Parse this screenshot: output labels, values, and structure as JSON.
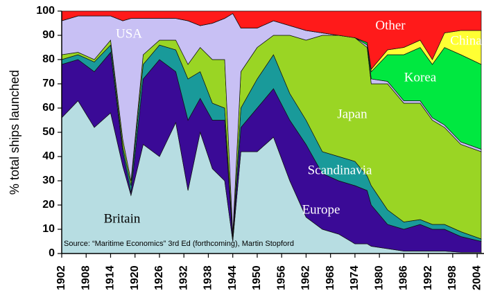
{
  "chart_data": {
    "type": "area",
    "stacked": true,
    "y_label": "% total ships launched",
    "annotation": "Source: “Maritime Economics” 3rd Ed (forthcoming), Martin Stopford",
    "x": [
      1902,
      1906,
      1910,
      1914,
      1917,
      1919,
      1922,
      1926,
      1930,
      1933,
      1936,
      1939,
      1942,
      1944,
      1946,
      1950,
      1954,
      1958,
      1962,
      1966,
      1970,
      1974,
      1977,
      1978,
      1982,
      1986,
      1990,
      1993,
      1996,
      2000,
      2005
    ],
    "xlim": [
      1902,
      2005
    ],
    "xticks": [
      1902,
      1908,
      1914,
      1920,
      1926,
      1932,
      1938,
      1944,
      1950,
      1956,
      1962,
      1968,
      1974,
      1980,
      1986,
      1992,
      1998,
      2004
    ],
    "ylim": [
      0,
      100
    ],
    "yticks": [
      0,
      10,
      20,
      30,
      40,
      50,
      60,
      70,
      80,
      90,
      100
    ],
    "series": [
      {
        "name": "Britain",
        "color": "#b7dde2",
        "values": [
          56,
          63,
          52,
          58,
          36,
          24,
          45,
          40,
          54,
          26,
          50,
          35,
          30,
          5,
          42,
          42,
          48,
          30,
          15,
          10,
          8,
          4,
          4,
          3,
          2,
          1,
          1,
          1,
          1,
          0.5,
          0.5
        ]
      },
      {
        "name": "Europe",
        "color": "#3a0a96",
        "values": [
          22,
          17,
          23,
          25,
          6,
          1,
          27,
          40,
          21,
          29,
          14,
          20,
          25,
          1,
          10,
          18,
          20,
          25,
          30,
          23,
          22,
          24,
          22,
          17,
          10,
          9,
          11,
          9,
          9,
          6.5,
          4.5
        ]
      },
      {
        "name": "Scandinavia",
        "color": "#199a9a",
        "values": [
          2,
          2,
          4,
          3,
          2,
          3,
          6,
          6,
          9,
          17,
          11,
          7,
          5,
          1,
          8,
          12,
          14,
          11,
          10,
          9,
          10,
          10,
          6,
          8,
          6,
          3,
          2,
          2,
          2,
          2,
          1
        ]
      },
      {
        "name": "Japan",
        "color": "#9ad524",
        "values": [
          2,
          1,
          1,
          2,
          3,
          2,
          4,
          2,
          4,
          6,
          10,
          18,
          20,
          1,
          15,
          13,
          8,
          24,
          33,
          48,
          50,
          51,
          53,
          42,
          52,
          49,
          48,
          43,
          40,
          36,
          36
        ]
      },
      {
        "name": "USA",
        "color": "#c8c0f4",
        "values": [
          14,
          15,
          18,
          10,
          49,
          67,
          15,
          9,
          9,
          18,
          9,
          15,
          17,
          91,
          18,
          8,
          6,
          4,
          4,
          1,
          0,
          0,
          1,
          2,
          1,
          1,
          1,
          1,
          1,
          1,
          1
        ]
      },
      {
        "name": "Korea",
        "color": "#00e840",
        "values": [
          0,
          0,
          0,
          0,
          0,
          0,
          0,
          0,
          0,
          0,
          0,
          0,
          0,
          0,
          0,
          0,
          0,
          0,
          0,
          0,
          0,
          0,
          1,
          3,
          11,
          19,
          22,
          22,
          32,
          36,
          35
        ]
      },
      {
        "name": "China",
        "color": "#ffff33",
        "values": [
          0,
          0,
          0,
          0,
          0,
          0,
          0,
          0,
          0,
          0,
          0,
          0,
          0,
          0,
          0,
          0,
          0,
          0,
          0,
          0,
          0,
          0,
          0,
          1,
          2,
          3,
          3,
          2,
          6,
          10,
          14
        ]
      },
      {
        "name": "Other",
        "color": "#ff1a1a",
        "values": [
          4,
          2,
          2,
          2,
          4,
          3,
          3,
          3,
          3,
          4,
          6,
          5,
          3,
          1,
          7,
          7,
          4,
          6,
          8,
          9,
          10,
          11,
          13,
          24,
          16,
          15,
          12,
          20,
          9,
          8,
          8
        ]
      }
    ]
  }
}
